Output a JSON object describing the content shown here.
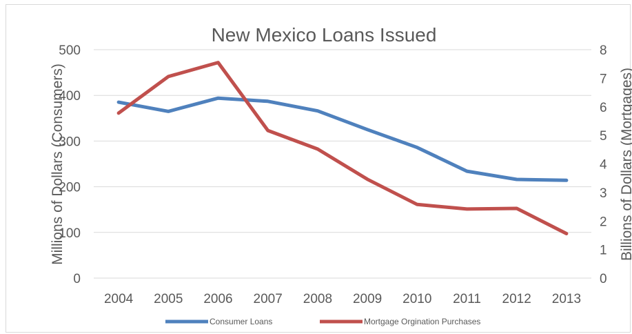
{
  "chart_data": {
    "type": "line",
    "title": "New Mexico Loans Issued",
    "categories": [
      "2004",
      "2005",
      "2006",
      "2007",
      "2008",
      "2009",
      "2010",
      "2011",
      "2012",
      "2013"
    ],
    "ylabel": "Millions of Dollars (Consumers)",
    "y2label": "Billions of Dollars (Mortgages)",
    "ylim": [
      0,
      500
    ],
    "y2lim": [
      0,
      8
    ],
    "yticks": [
      "0",
      "100",
      "200",
      "300",
      "400",
      "500"
    ],
    "y2ticks": [
      "0",
      "1",
      "2",
      "3",
      "4",
      "5",
      "6",
      "7",
      "8"
    ],
    "grid": true,
    "legend_position": "bottom",
    "series": [
      {
        "name": "Consumer Loans",
        "axis": "left",
        "color": "#4f81bd",
        "values": [
          385,
          365,
          394,
          387,
          366,
          325,
          286,
          234,
          216,
          214
        ]
      },
      {
        "name": "Mortgage Orgination Purchases",
        "axis": "right",
        "color": "#c0504d",
        "values": [
          5.78,
          7.06,
          7.55,
          5.17,
          4.52,
          3.46,
          2.58,
          2.42,
          2.44,
          1.56
        ]
      }
    ]
  }
}
